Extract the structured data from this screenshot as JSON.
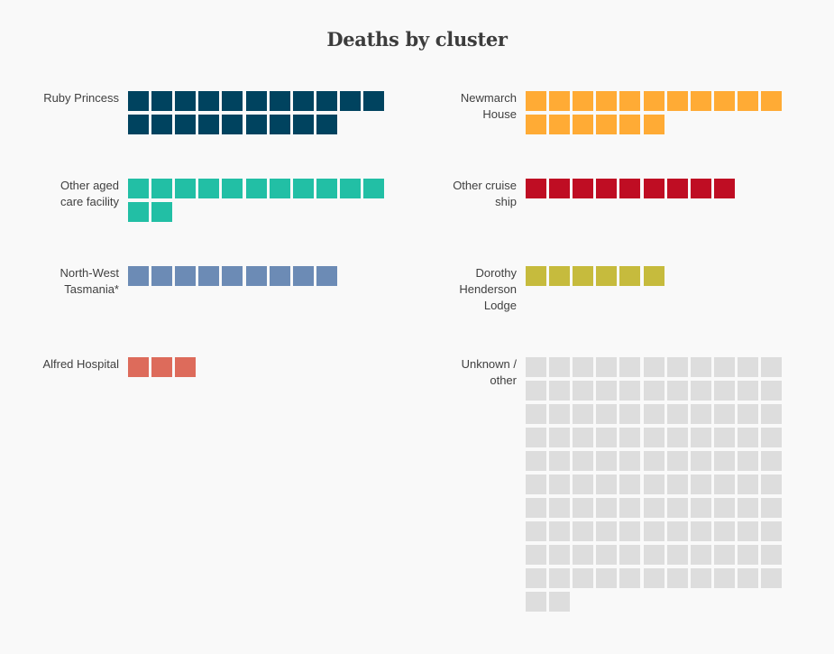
{
  "chart_data": {
    "type": "waffle",
    "title": "Deaths by cluster",
    "unit": "one square = one death",
    "columns": 11,
    "categories": [
      {
        "name": "Ruby Princess",
        "label_lines": [
          "Ruby Princess"
        ],
        "value": 20,
        "color": "#00435f"
      },
      {
        "name": "Newmarch House",
        "label_lines": [
          "Newmarch",
          "House"
        ],
        "value": 17,
        "color": "#ffab35"
      },
      {
        "name": "Other aged care facility",
        "label_lines": [
          "Other aged",
          "care facility"
        ],
        "value": 13,
        "color": "#22bfa5"
      },
      {
        "name": "Other cruise ship",
        "label_lines": [
          "Other cruise",
          "ship"
        ],
        "value": 9,
        "color": "#bf0d23"
      },
      {
        "name": "North-West Tasmania*",
        "label_lines": [
          "North-West",
          "Tasmania*"
        ],
        "value": 9,
        "color": "#6c8bb5"
      },
      {
        "name": "Dorothy Henderson Lodge",
        "label_lines": [
          "Dorothy",
          "Henderson",
          "Lodge"
        ],
        "value": 6,
        "color": "#c6bb3d"
      },
      {
        "name": "Alfred Hospital",
        "label_lines": [
          "Alfred Hospital"
        ],
        "value": 3,
        "color": "#dd6b5b"
      },
      {
        "name": "Unknown / other",
        "label_lines": [
          "Unknown /",
          "other"
        ],
        "value": 112,
        "color": "#dddddd"
      }
    ]
  }
}
